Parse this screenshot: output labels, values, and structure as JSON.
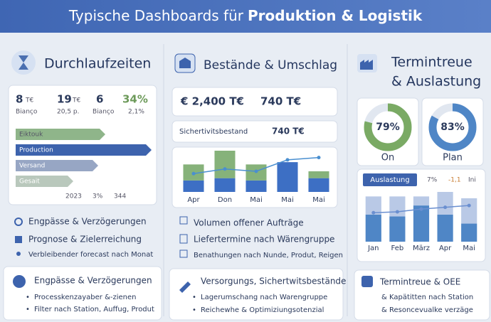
{
  "header": {
    "title_plain": "Typische Dashboards für",
    "title_bold": "Produktion & Logistik"
  },
  "columns": [
    {
      "title": "Durchlaufzeiten",
      "kpis": [
        {
          "value": "8",
          "unit": "T€",
          "sub": "Bianço"
        },
        {
          "value": "19",
          "unit": "T€",
          "sub": "20,5 p."
        },
        {
          "value": "6",
          "sub": "Bianço"
        },
        {
          "value": "34%",
          "sub": "2,1%"
        }
      ],
      "stages": [
        "Eiktouk",
        "Production",
        "Versand",
        "Gesait"
      ],
      "footer": [
        "2023",
        "3%",
        "344"
      ],
      "list": [
        "Engpässe & Verzögerungen",
        "Prognose & Zielerreichung",
        "Verbleibender forecast nach Monat"
      ],
      "card": {
        "title": "Engpässe & Verzögerungen",
        "bullets": [
          "Processkenzayaber &-zienen",
          "Filter nach Station, Auffug, Produt"
        ]
      }
    },
    {
      "title": "Bestände & Umschlag",
      "kpis": [
        "€ 2,400 T€",
        "740 T€"
      ],
      "safety": {
        "label": "Sichertivitsbestand",
        "value": "740 T€"
      },
      "chart": {
        "type": "bar",
        "categories": [
          "Apr",
          "Don",
          "Mai",
          "Mai",
          "Mai"
        ],
        "series": [
          {
            "color": "#3d6fc4",
            "values": [
              25,
              30,
              25,
              65,
              30
            ]
          },
          {
            "color": "#86b27a",
            "values": [
              35,
              60,
              35,
              0,
              15
            ]
          }
        ],
        "line": {
          "color": "#4a8fd0",
          "values": [
            40,
            50,
            45,
            70,
            75
          ]
        }
      },
      "list": [
        "Volumen offener Aufträge",
        "Liefertermine nach Wärengruppe",
        "Benathungen nach Nunde, Produt, Reigen"
      ],
      "card": {
        "title": "Versorgungs, Sichertwitsbestände",
        "bullets": [
          "Lagerumschang nach Warengruppe",
          "Reichewhe & Optimiziungsotenzial"
        ]
      }
    },
    {
      "title": [
        "Termintreue",
        "& Auslastung"
      ],
      "gauges": {
        "values": [
          79,
          83
        ],
        "value_labels": [
          "79%",
          "83%"
        ],
        "labels": [
          "On",
          "Plan"
        ],
        "colors": [
          "#7aaa64",
          "#4f86c6"
        ]
      },
      "chart": {
        "type": "bar",
        "tab": "Auslastung",
        "stats": [
          "7%",
          "-1,1",
          "Ini"
        ],
        "categories": [
          "Jan",
          "Feb",
          "März",
          "Apr",
          "Mai"
        ],
        "series": [
          {
            "color": "#4f86c6",
            "values": [
              30,
              28,
              40,
              30,
              20
            ]
          },
          {
            "color": "#b9c9e6",
            "values": [
              20,
              22,
              10,
              25,
              28
            ]
          }
        ],
        "line": {
          "color": "#6a8fd0",
          "values": [
            32,
            33,
            36,
            38,
            40
          ]
        }
      },
      "card": {
        "title": "Termintreue & OEE",
        "bullets": [
          "& Kapätitten nach Station",
          "& Resoncevualke verzäge"
        ]
      }
    }
  ]
}
